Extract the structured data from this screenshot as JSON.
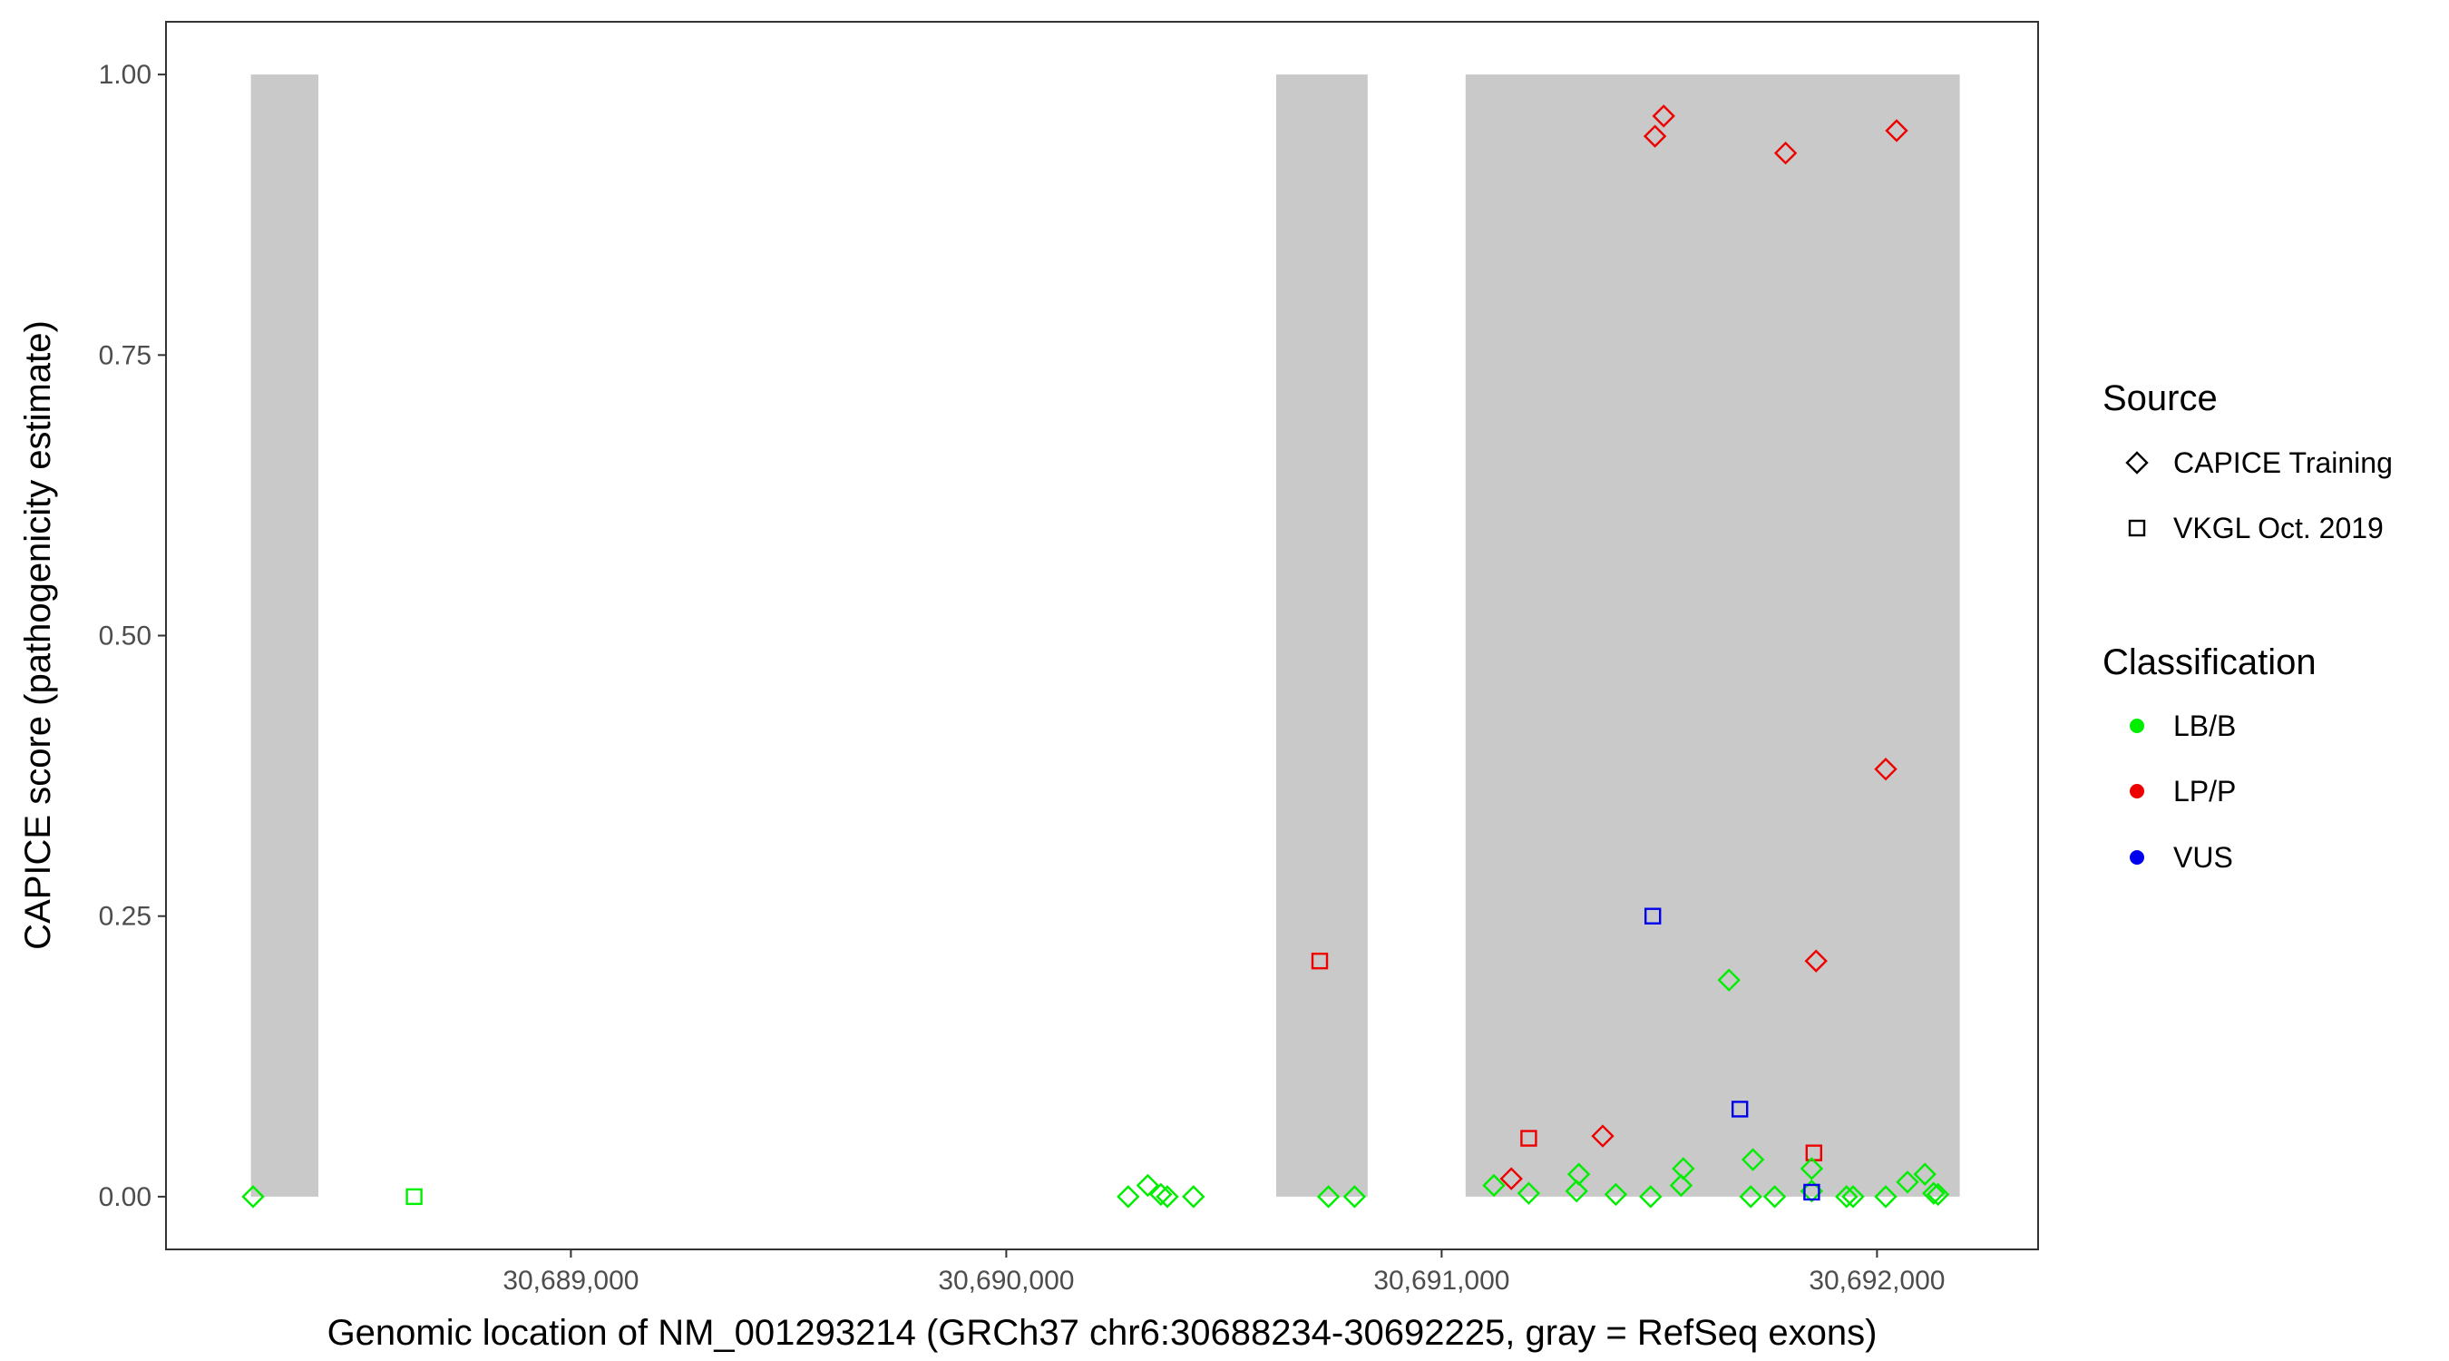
{
  "chart_data": {
    "type": "scatter",
    "title": "",
    "xlabel": "Genomic location of NM_001293214 (GRCh37 chr6:30688234-30692225, gray = RefSeq exons)",
    "ylabel": "CAPICE score (pathogenicity estimate)",
    "xlim": [
      30688070,
      30692370
    ],
    "ylim": [
      -0.047,
      1.047
    ],
    "x_ticks": [
      30689000,
      30690000,
      30691000,
      30692000
    ],
    "x_tick_labels": [
      "30,689,000",
      "30,690,000",
      "30,691,000",
      "30,692,000"
    ],
    "y_ticks": [
      0,
      0.25,
      0.5,
      0.75,
      1
    ],
    "y_tick_labels": [
      "0.00",
      "0.25",
      "0.50",
      "0.75",
      "1.00"
    ],
    "grid": false,
    "exons": [
      {
        "start": 30688265,
        "end": 30688420
      },
      {
        "start": 30690620,
        "end": 30690830
      },
      {
        "start": 30691055,
        "end": 30692190
      }
    ],
    "colors": {
      "exon_fill": "#c9c9c9",
      "LB/B": "#00ee00",
      "LP/P": "#ee0000",
      "VUS": "#0000ee"
    },
    "legend": {
      "placement": "right",
      "source_title": "Source",
      "source_items": [
        {
          "label": "CAPICE Training",
          "shape": "diamond"
        },
        {
          "label": "VKGL Oct. 2019",
          "shape": "square"
        }
      ],
      "class_title": "Classification",
      "class_items": [
        {
          "label": "LB/B",
          "key": "LB/B"
        },
        {
          "label": "LP/P",
          "key": "LP/P"
        },
        {
          "label": "VUS",
          "key": "VUS"
        }
      ]
    },
    "points": [
      {
        "x": 30688270,
        "y": 0.0,
        "shape": "diamond",
        "class": "LB/B"
      },
      {
        "x": 30688640,
        "y": 0.0,
        "shape": "square",
        "class": "LB/B"
      },
      {
        "x": 30690280,
        "y": 0.0,
        "shape": "diamond",
        "class": "LB/B"
      },
      {
        "x": 30690325,
        "y": 0.01,
        "shape": "diamond",
        "class": "LB/B"
      },
      {
        "x": 30690355,
        "y": 0.002,
        "shape": "diamond",
        "class": "LB/B"
      },
      {
        "x": 30690370,
        "y": 0.0,
        "shape": "diamond",
        "class": "LB/B"
      },
      {
        "x": 30690430,
        "y": 0.0,
        "shape": "diamond",
        "class": "LB/B"
      },
      {
        "x": 30690720,
        "y": 0.21,
        "shape": "square",
        "class": "LP/P"
      },
      {
        "x": 30690740,
        "y": 0.0,
        "shape": "diamond",
        "class": "LB/B"
      },
      {
        "x": 30690800,
        "y": 0.0,
        "shape": "diamond",
        "class": "LB/B"
      },
      {
        "x": 30691120,
        "y": 0.01,
        "shape": "diamond",
        "class": "LB/B"
      },
      {
        "x": 30691160,
        "y": 0.016,
        "shape": "diamond",
        "class": "LP/P"
      },
      {
        "x": 30691200,
        "y": 0.052,
        "shape": "square",
        "class": "LP/P"
      },
      {
        "x": 30691200,
        "y": 0.003,
        "shape": "diamond",
        "class": "LB/B"
      },
      {
        "x": 30691310,
        "y": 0.005,
        "shape": "diamond",
        "class": "LB/B"
      },
      {
        "x": 30691315,
        "y": 0.02,
        "shape": "diamond",
        "class": "LB/B"
      },
      {
        "x": 30691370,
        "y": 0.054,
        "shape": "diamond",
        "class": "LP/P"
      },
      {
        "x": 30691400,
        "y": 0.002,
        "shape": "diamond",
        "class": "LB/B"
      },
      {
        "x": 30691480,
        "y": 0.0,
        "shape": "diamond",
        "class": "LB/B"
      },
      {
        "x": 30691490,
        "y": 0.945,
        "shape": "diamond",
        "class": "LP/P"
      },
      {
        "x": 30691485,
        "y": 0.25,
        "shape": "square",
        "class": "VUS"
      },
      {
        "x": 30691510,
        "y": 0.963,
        "shape": "diamond",
        "class": "LP/P"
      },
      {
        "x": 30691550,
        "y": 0.01,
        "shape": "diamond",
        "class": "LB/B"
      },
      {
        "x": 30691555,
        "y": 0.025,
        "shape": "diamond",
        "class": "LB/B"
      },
      {
        "x": 30691660,
        "y": 0.193,
        "shape": "diamond",
        "class": "LB/B"
      },
      {
        "x": 30691685,
        "y": 0.078,
        "shape": "square",
        "class": "VUS"
      },
      {
        "x": 30691710,
        "y": 0.0,
        "shape": "diamond",
        "class": "LB/B"
      },
      {
        "x": 30691715,
        "y": 0.033,
        "shape": "diamond",
        "class": "LB/B"
      },
      {
        "x": 30691765,
        "y": 0.0,
        "shape": "diamond",
        "class": "LB/B"
      },
      {
        "x": 30691790,
        "y": 0.93,
        "shape": "diamond",
        "class": "LP/P"
      },
      {
        "x": 30691855,
        "y": 0.039,
        "shape": "square",
        "class": "LP/P"
      },
      {
        "x": 30691860,
        "y": 0.21,
        "shape": "diamond",
        "class": "LP/P"
      },
      {
        "x": 30691850,
        "y": 0.025,
        "shape": "diamond",
        "class": "LB/B"
      },
      {
        "x": 30691850,
        "y": 0.005,
        "shape": "diamond",
        "class": "LB/B"
      },
      {
        "x": 30691850,
        "y": 0.004,
        "shape": "square",
        "class": "VUS"
      },
      {
        "x": 30691930,
        "y": 0.0,
        "shape": "diamond",
        "class": "LB/B"
      },
      {
        "x": 30691945,
        "y": 0.0,
        "shape": "diamond",
        "class": "LB/B"
      },
      {
        "x": 30692020,
        "y": 0.0,
        "shape": "diamond",
        "class": "LB/B"
      },
      {
        "x": 30692020,
        "y": 0.381,
        "shape": "diamond",
        "class": "LP/P"
      },
      {
        "x": 30692045,
        "y": 0.95,
        "shape": "diamond",
        "class": "LP/P"
      },
      {
        "x": 30692070,
        "y": 0.013,
        "shape": "diamond",
        "class": "LB/B"
      },
      {
        "x": 30692110,
        "y": 0.02,
        "shape": "diamond",
        "class": "LB/B"
      },
      {
        "x": 30692130,
        "y": 0.003,
        "shape": "diamond",
        "class": "LB/B"
      },
      {
        "x": 30692140,
        "y": 0.002,
        "shape": "diamond",
        "class": "LB/B"
      }
    ]
  }
}
